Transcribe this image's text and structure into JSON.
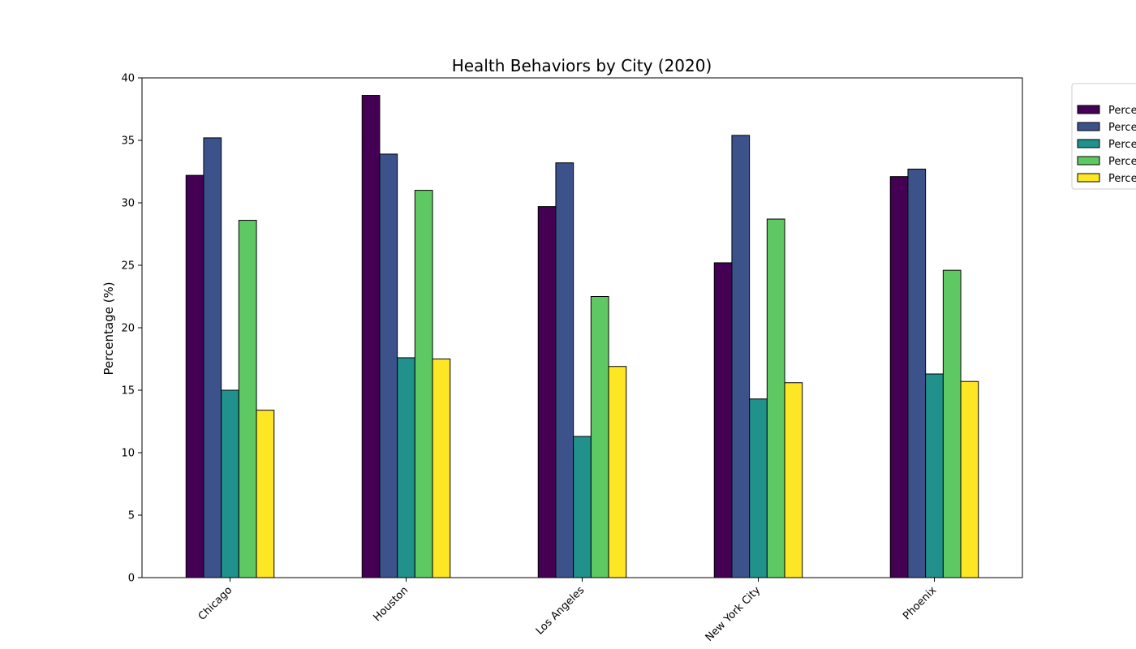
{
  "chart_data": {
    "type": "bar",
    "title": "Health Behaviors by City (2020)",
    "xlabel": "",
    "ylabel": "Percentage (%)",
    "ylim": [
      0,
      40
    ],
    "yticks": [
      0,
      5,
      10,
      15,
      20,
      25,
      30,
      35,
      40
    ],
    "grid": false,
    "legend_position": "outside-top-right",
    "categories": [
      "Chicago",
      "Houston",
      "Los Angeles",
      "New York City",
      "Phoenix"
    ],
    "series": [
      {
        "name": "Perce",
        "color": "#440154",
        "values": [
          32.2,
          38.6,
          29.7,
          25.2,
          32.1
        ]
      },
      {
        "name": "Perce",
        "color": "#3b528b",
        "values": [
          35.2,
          33.9,
          33.2,
          35.4,
          32.7
        ]
      },
      {
        "name": "Perce",
        "color": "#21918c",
        "values": [
          15.0,
          17.6,
          11.3,
          14.3,
          16.3
        ]
      },
      {
        "name": "Perce",
        "color": "#5ec962",
        "values": [
          28.6,
          31.0,
          22.5,
          28.7,
          24.6
        ]
      },
      {
        "name": "Perce",
        "color": "#fde725",
        "values": [
          13.4,
          17.5,
          16.9,
          15.6,
          15.7
        ]
      }
    ]
  }
}
